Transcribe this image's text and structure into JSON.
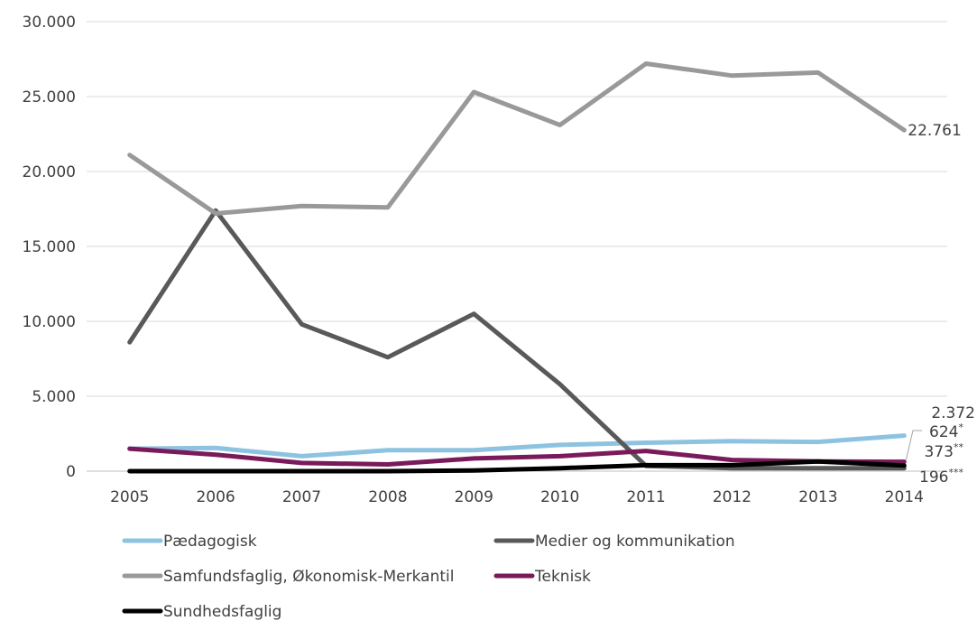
{
  "chart_data": {
    "type": "line",
    "title": "",
    "xlabel": "",
    "ylabel": "",
    "x": [
      2005,
      2006,
      2007,
      2008,
      2009,
      2010,
      2011,
      2012,
      2013,
      2014
    ],
    "y_ticks": [
      "0",
      "5.000",
      "10.000",
      "15.000",
      "20.000",
      "25.000",
      "30.000"
    ],
    "ylim": [
      0,
      30000
    ],
    "grid": true,
    "legend_position": "bottom",
    "series": [
      {
        "name": "Pædagogisk",
        "color": "#8dc3e0",
        "values": [
          1500,
          1550,
          1000,
          1400,
          1400,
          1750,
          1900,
          2000,
          1950,
          2372
        ]
      },
      {
        "name": "Medier og kommunikation",
        "color": "#595959",
        "values": [
          8600,
          17400,
          9800,
          7600,
          10500,
          5800,
          350,
          200,
          200,
          196
        ]
      },
      {
        "name": "Samfundsfaglig, Økonomisk-Merkantil",
        "color": "#999999",
        "values": [
          21100,
          17200,
          17700,
          17600,
          25300,
          23100,
          27200,
          26400,
          26600,
          22761
        ]
      },
      {
        "name": "Teknisk",
        "color": "#7a1a5a",
        "values": [
          1500,
          1100,
          550,
          450,
          850,
          1000,
          1350,
          750,
          650,
          624
        ]
      },
      {
        "name": "Sundhedsfaglig",
        "color": "#000000",
        "values": [
          0,
          0,
          0,
          0,
          50,
          200,
          400,
          400,
          650,
          373
        ]
      }
    ],
    "annotations": [
      {
        "text": "22.761",
        "sup": ""
      },
      {
        "text": "2.372",
        "sup": ""
      },
      {
        "text": "624",
        "sup": "*"
      },
      {
        "text": "373",
        "sup": "**"
      },
      {
        "text": "196",
        "sup": "***"
      }
    ]
  }
}
